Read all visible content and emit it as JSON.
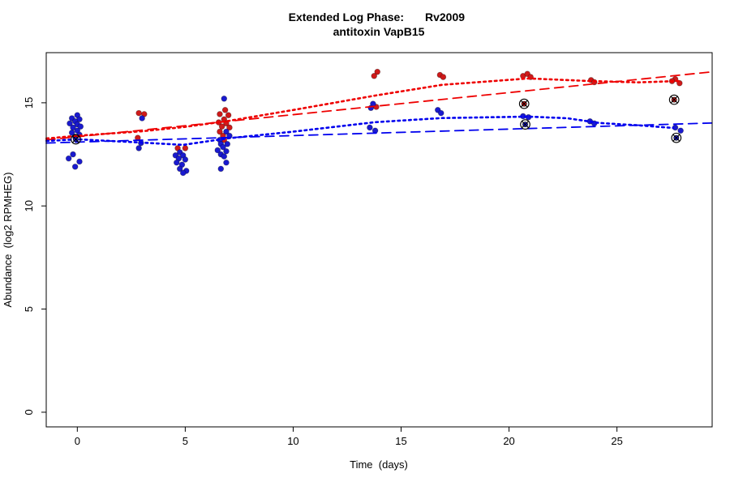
{
  "chart_data": {
    "type": "scatter",
    "title": {
      "line1_left": "Extended Log Phase:",
      "line1_right": "Rv2009",
      "line2": "antitoxin VapB15"
    },
    "xlabel": "Time  (days)",
    "ylabel": "Abundance  (log2 RPMHEG)",
    "xlim": [
      -1.44,
      29.41
    ],
    "ylim": [
      -0.71,
      17.43
    ],
    "x_ticks": [
      0,
      5,
      10,
      15,
      20,
      25
    ],
    "y_ticks": [
      0,
      5,
      10,
      15
    ],
    "grid": false,
    "legend": "none",
    "colors": {
      "red": "#cf1a1a",
      "blue": "#1a1acf",
      "red_line": "#ee0000",
      "blue_line": "#0000ee",
      "outlier_ring": "#000000"
    },
    "series": [
      {
        "name": "red-samples",
        "marker": "dot",
        "color_key": "red",
        "points": [
          [
            2.85,
            14.5
          ],
          [
            3.1,
            14.45
          ],
          [
            2.8,
            13.3
          ],
          [
            4.65,
            12.8
          ],
          [
            5.0,
            12.8
          ],
          [
            6.85,
            14.65
          ],
          [
            6.6,
            14.45
          ],
          [
            7.0,
            14.4
          ],
          [
            6.8,
            14.2
          ],
          [
            6.55,
            14.05
          ],
          [
            6.9,
            14.0
          ],
          [
            6.7,
            13.85
          ],
          [
            7.05,
            13.8
          ],
          [
            6.6,
            13.6
          ],
          [
            6.75,
            13.4
          ],
          [
            6.8,
            13.2
          ],
          [
            13.9,
            16.5
          ],
          [
            13.75,
            16.3
          ],
          [
            13.85,
            14.8
          ],
          [
            16.8,
            16.35
          ],
          [
            16.95,
            16.25
          ],
          [
            20.65,
            16.3
          ],
          [
            20.85,
            16.4
          ],
          [
            21.0,
            16.25
          ],
          [
            23.8,
            16.1
          ],
          [
            23.95,
            16.0
          ],
          [
            27.7,
            16.15
          ],
          [
            27.55,
            16.05
          ],
          [
            27.9,
            15.95
          ]
        ]
      },
      {
        "name": "blue-samples",
        "marker": "dot",
        "color_key": "blue",
        "points": [
          [
            0.0,
            14.4
          ],
          [
            -0.25,
            14.25
          ],
          [
            0.1,
            14.2
          ],
          [
            -0.1,
            14.1
          ],
          [
            -0.35,
            14.0
          ],
          [
            0.0,
            13.95
          ],
          [
            0.15,
            13.85
          ],
          [
            -0.2,
            13.8
          ],
          [
            0.0,
            13.65
          ],
          [
            -0.25,
            13.55
          ],
          [
            0.1,
            13.45
          ],
          [
            -0.1,
            13.35
          ],
          [
            -0.2,
            12.5
          ],
          [
            -0.4,
            12.3
          ],
          [
            0.1,
            12.15
          ],
          [
            -0.1,
            11.9
          ],
          [
            3.0,
            14.25
          ],
          [
            2.95,
            13.05
          ],
          [
            2.85,
            12.8
          ],
          [
            4.75,
            12.6
          ],
          [
            4.55,
            12.45
          ],
          [
            4.9,
            12.45
          ],
          [
            4.7,
            12.3
          ],
          [
            5.0,
            12.25
          ],
          [
            4.6,
            12.1
          ],
          [
            4.85,
            12.0
          ],
          [
            4.75,
            11.8
          ],
          [
            5.05,
            11.7
          ],
          [
            4.9,
            11.6
          ],
          [
            6.8,
            15.2
          ],
          [
            6.9,
            13.6
          ],
          [
            7.05,
            13.4
          ],
          [
            6.6,
            13.2
          ],
          [
            6.65,
            13.0
          ],
          [
            6.95,
            13.0
          ],
          [
            6.75,
            12.85
          ],
          [
            6.5,
            12.7
          ],
          [
            6.9,
            12.65
          ],
          [
            6.65,
            12.5
          ],
          [
            6.8,
            12.4
          ],
          [
            6.9,
            12.1
          ],
          [
            6.65,
            11.8
          ],
          [
            13.7,
            14.95
          ],
          [
            13.6,
            14.75
          ],
          [
            13.55,
            13.8
          ],
          [
            13.8,
            13.65
          ],
          [
            16.7,
            14.65
          ],
          [
            16.85,
            14.5
          ],
          [
            20.65,
            14.35
          ],
          [
            20.9,
            14.3
          ],
          [
            23.75,
            14.1
          ],
          [
            23.95,
            14.0
          ],
          [
            27.7,
            13.8
          ],
          [
            27.95,
            13.65
          ]
        ]
      },
      {
        "name": "red-outliers",
        "marker": "circle-x",
        "color_key": "red",
        "points": [
          [
            20.7,
            14.95
          ],
          [
            27.65,
            15.15
          ]
        ]
      },
      {
        "name": "blue-outliers",
        "marker": "circle-x",
        "color_key": "blue",
        "points": [
          [
            -0.07,
            13.23
          ],
          [
            20.75,
            13.95
          ],
          [
            27.75,
            13.3
          ]
        ]
      }
    ],
    "trend_lines": [
      {
        "name": "red-regression",
        "style": "longdash",
        "color_key": "red_line",
        "points": [
          [
            -1.44,
            13.2
          ],
          [
            29.41,
            16.5
          ]
        ]
      },
      {
        "name": "red-lowess",
        "style": "dotted",
        "color_key": "red_line",
        "points": [
          [
            -1.43,
            13.27
          ],
          [
            0,
            13.4
          ],
          [
            3,
            13.62
          ],
          [
            4.9,
            13.82
          ],
          [
            7,
            14.12
          ],
          [
            10,
            14.65
          ],
          [
            13.8,
            15.35
          ],
          [
            16.9,
            15.87
          ],
          [
            20.9,
            16.18
          ],
          [
            23.6,
            16.06
          ],
          [
            26,
            15.99
          ],
          [
            28,
            16.06
          ]
        ]
      },
      {
        "name": "blue-regression",
        "style": "longdash",
        "color_key": "blue_line",
        "points": [
          [
            -1.44,
            13.05
          ],
          [
            29.41,
            14.02
          ]
        ]
      },
      {
        "name": "blue-lowess",
        "style": "dotted",
        "color_key": "blue_line",
        "points": [
          [
            -1.43,
            13.15
          ],
          [
            0,
            13.23
          ],
          [
            3,
            13.07
          ],
          [
            4.9,
            12.96
          ],
          [
            7,
            13.28
          ],
          [
            10,
            13.6
          ],
          [
            13.8,
            14.06
          ],
          [
            16.9,
            14.26
          ],
          [
            20.9,
            14.33
          ],
          [
            22.7,
            14.25
          ],
          [
            24.2,
            14.02
          ],
          [
            26.1,
            13.9
          ],
          [
            27.6,
            13.78
          ]
        ]
      }
    ]
  }
}
